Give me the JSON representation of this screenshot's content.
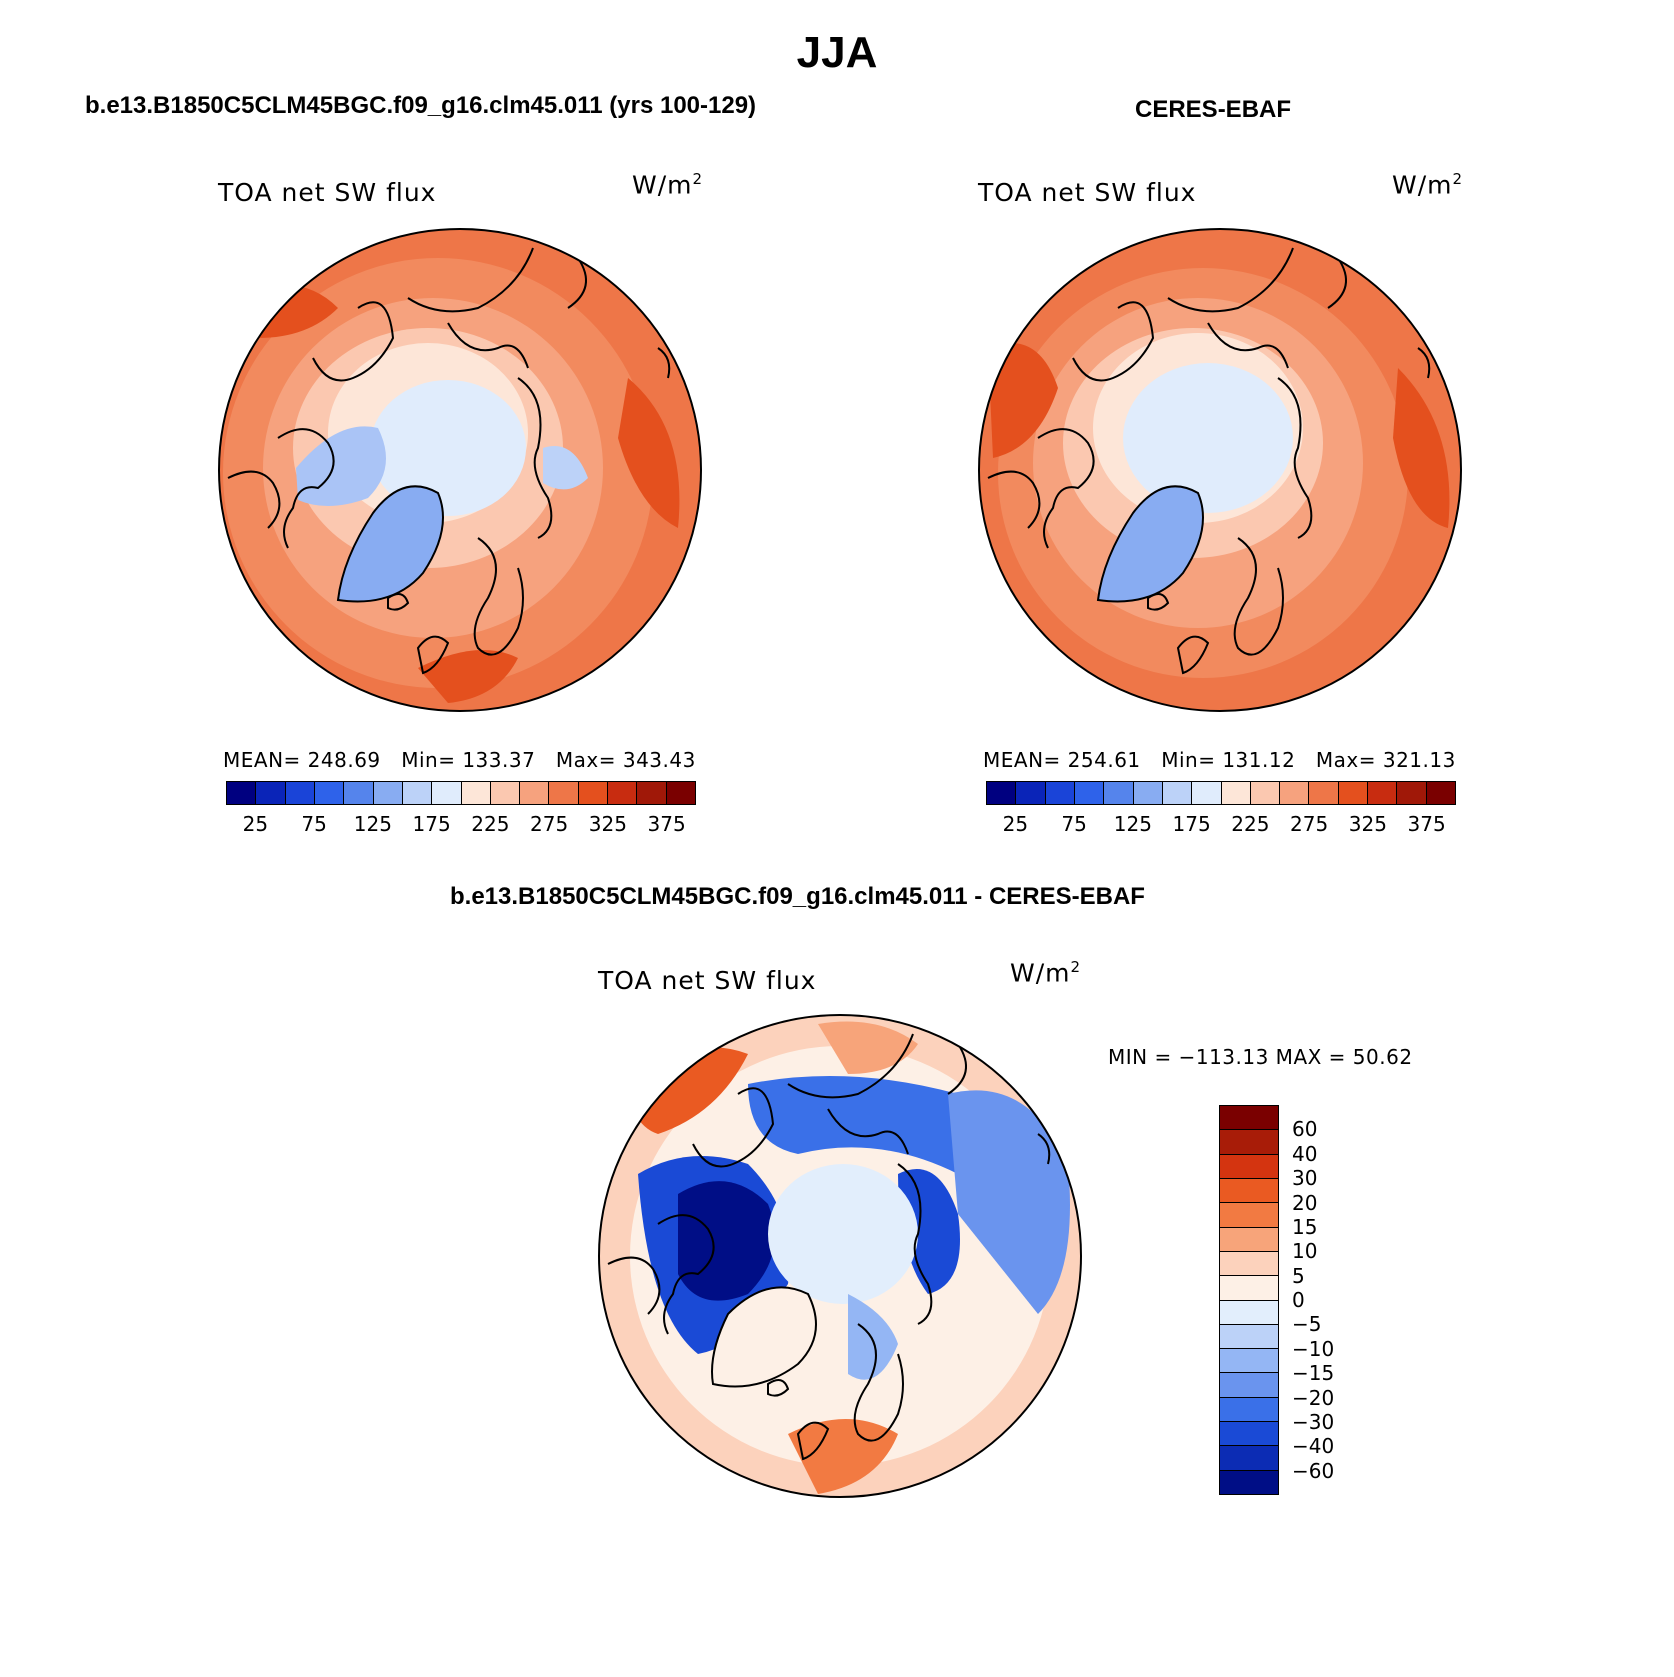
{
  "figure": {
    "title": "JJA"
  },
  "panels": [
    {
      "title": "b.e13.B1850C5CLM45BGC.f09_g16.clm45.011 (yrs 100-129)",
      "variable": "TOA net SW flux",
      "units_base": "W/m",
      "units_exp": "2",
      "mean_label": "MEAN=",
      "mean": "248.69",
      "min_label": "Min=",
      "min": "133.37",
      "max_label": "Max=",
      "max": "343.43"
    },
    {
      "title": "CERES-EBAF",
      "variable": "TOA net SW flux",
      "units_base": "W/m",
      "units_exp": "2",
      "mean_label": "MEAN=",
      "mean": "254.61",
      "min_label": "Min=",
      "min": "131.12",
      "max_label": "Max=",
      "max": "321.13"
    }
  ],
  "diff_panel": {
    "title": "b.e13.B1850C5CLM45BGC.f09_g16.clm45.011 - CERES-EBAF",
    "variable": "TOA net SW flux",
    "units_base": "W/m",
    "units_exp": "2",
    "minmax_text": "MIN = −113.13 MAX =   50.62"
  },
  "chart_data": [
    {
      "type": "heatmap",
      "projection": "north polar stereographic",
      "title": "b.e13.B1850C5CLM45BGC.f09_g16.clm45.011 (yrs 100-129)",
      "variable": "TOA net SW flux",
      "units": "W/m2",
      "mean": 248.69,
      "min": 133.37,
      "max": 343.43,
      "colorbar_ticks": [
        "25",
        "75",
        "125",
        "175",
        "225",
        "275",
        "325",
        "375"
      ],
      "colorbar_levels": [
        25,
        50,
        75,
        100,
        125,
        150,
        175,
        200,
        225,
        250,
        275,
        300,
        325,
        350,
        375
      ]
    },
    {
      "type": "heatmap",
      "projection": "north polar stereographic",
      "title": "CERES-EBAF",
      "variable": "TOA net SW flux",
      "units": "W/m2",
      "mean": 254.61,
      "min": 131.12,
      "max": 321.13,
      "colorbar_ticks": [
        "25",
        "75",
        "125",
        "175",
        "225",
        "275",
        "325",
        "375"
      ],
      "colorbar_levels": [
        25,
        50,
        75,
        100,
        125,
        150,
        175,
        200,
        225,
        250,
        275,
        300,
        325,
        350,
        375
      ]
    },
    {
      "type": "heatmap",
      "projection": "north polar stereographic",
      "title": "b.e13.B1850C5CLM45BGC.f09_g16.clm45.011 - CERES-EBAF",
      "variable": "TOA net SW flux",
      "units": "W/m2",
      "min": -113.13,
      "max": 50.62,
      "colorbar_ticks": [
        "60",
        "40",
        "30",
        "20",
        "15",
        "10",
        "5",
        "0",
        "−5",
        "−10",
        "−15",
        "−20",
        "−30",
        "−40",
        "−60"
      ]
    }
  ],
  "colors": {
    "seq_palette": [
      "#000080",
      "#0a24b8",
      "#1a44d8",
      "#2e62ea",
      "#5584ec",
      "#88acf2",
      "#bcd2f8",
      "#e0ecfc",
      "#fde6d8",
      "#fbc8b0",
      "#f6a27e",
      "#ee7648",
      "#e4501e",
      "#c82c10",
      "#a01808",
      "#7a0000"
    ],
    "diff_palette": [
      "#7a0000",
      "#a81c08",
      "#d43410",
      "#ea5a22",
      "#f27a42",
      "#f7a47a",
      "#fcd2bc",
      "#fdf0e6",
      "#e2eefc",
      "#bcd2f8",
      "#94b6f4",
      "#6a94ee",
      "#3a70e8",
      "#1a4ad6",
      "#0c2cb4",
      "#000e86"
    ],
    "land_outline": "#000000"
  }
}
